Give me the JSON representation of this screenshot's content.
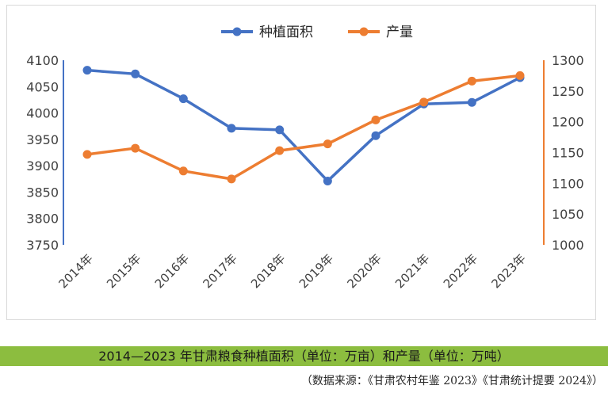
{
  "chart_data": {
    "type": "line",
    "categories": [
      "2014年",
      "2015年",
      "2016年",
      "2017年",
      "2018年",
      "2019年",
      "2020年",
      "2021年",
      "2022年",
      "2023年"
    ],
    "series": [
      {
        "name": "种植面积",
        "axis": "left",
        "color": "#4472c4",
        "values": [
          4081,
          4074,
          4027,
          3971,
          3968,
          3871,
          3957,
          4017,
          4020,
          4067
        ]
      },
      {
        "name": "产量",
        "axis": "right",
        "color": "#ed7d31",
        "values": [
          1147,
          1157,
          1120,
          1107,
          1153,
          1164,
          1203,
          1232,
          1266,
          1275
        ]
      }
    ],
    "y_left": {
      "min": 3750,
      "max": 4100,
      "step": 50,
      "ticks": [
        "3750",
        "3800",
        "3850",
        "3900",
        "3950",
        "4000",
        "4050",
        "4100"
      ]
    },
    "y_right": {
      "min": 1000,
      "max": 1300,
      "step": 50,
      "ticks": [
        "1000",
        "1050",
        "1100",
        "1150",
        "1200",
        "1250",
        "1300"
      ]
    },
    "grid": false,
    "legend_position": "top-center",
    "caption": "2014—2023 年甘肃粮食种植面积（单位：万亩）和产量（单位：万吨）",
    "source": "（数据来源：《甘肃农村年鉴 2023》《甘肃统计提要 2024》）"
  },
  "colors": {
    "caption_bar": "#8cbd3f",
    "left_axis": "#4472c4",
    "right_axis": "#ed7d31"
  }
}
